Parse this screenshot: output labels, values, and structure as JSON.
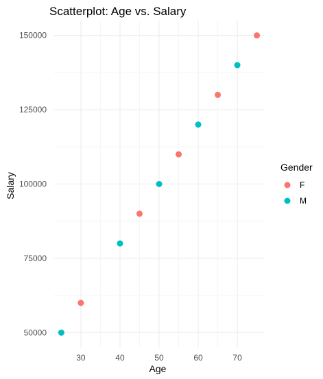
{
  "chart_data": {
    "type": "scatter",
    "title": "Scatterplot: Age vs. Salary",
    "xlabel": "Age",
    "ylabel": "Salary",
    "xlim": [
      23,
      77
    ],
    "ylim": [
      45000,
      155000
    ],
    "x_ticks": [
      30,
      40,
      50,
      60,
      70
    ],
    "y_ticks": [
      50000,
      75000,
      100000,
      125000,
      150000
    ],
    "x_tick_labels": [
      "30",
      "40",
      "50",
      "60",
      "70"
    ],
    "y_tick_labels": [
      "50000",
      "75000",
      "100000",
      "125000",
      "150000"
    ],
    "grid": true,
    "legend": {
      "title": "Gender",
      "placement": "right"
    },
    "series": [
      {
        "name": "F",
        "color": "#F8766D",
        "points": [
          {
            "x": 30,
            "y": 60000
          },
          {
            "x": 45,
            "y": 90000
          },
          {
            "x": 55,
            "y": 110000
          },
          {
            "x": 65,
            "y": 130000
          },
          {
            "x": 75,
            "y": 150000
          }
        ]
      },
      {
        "name": "M",
        "color": "#00BFC4",
        "points": [
          {
            "x": 25,
            "y": 50000
          },
          {
            "x": 40,
            "y": 80000
          },
          {
            "x": 50,
            "y": 100000
          },
          {
            "x": 60,
            "y": 120000
          },
          {
            "x": 70,
            "y": 140000
          }
        ]
      }
    ]
  }
}
